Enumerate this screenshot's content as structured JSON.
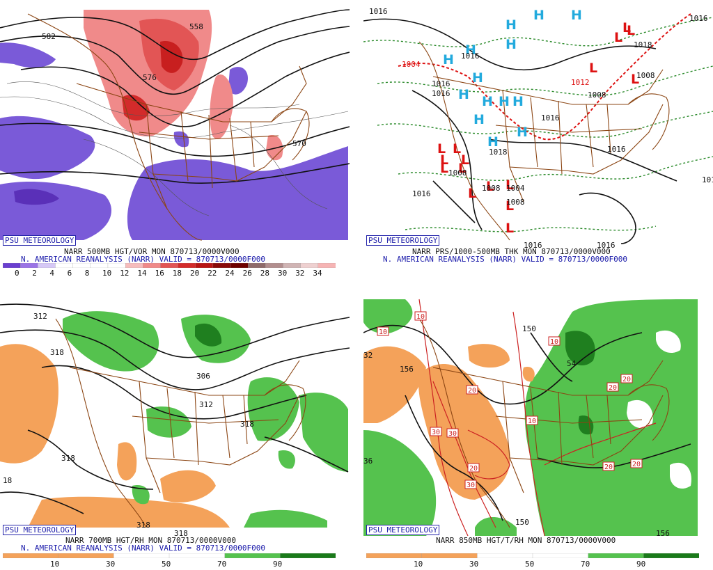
{
  "panels": [
    {
      "id": "p1",
      "tag": "PSU METEOROLOGY",
      "line1": "NARR 500MB HGT/VOR MON 870713/0000V000",
      "line2": "N. AMERICAN REANALYSIS (NARR) VALID = 870713/0000F000",
      "colorbar": {
        "colors": [
          "#6a3fd0",
          "#9a73e6",
          "#d6c8f6",
          "#ffffff",
          "#ffffff",
          "#ffffff",
          "#ffffff",
          "#f6bcbc",
          "#f08a8a",
          "#e25555",
          "#d32b2b",
          "#b81515",
          "#8a0a0a",
          "#6d0000",
          "#8e6a6a",
          "#b28e8e",
          "#d0b4b4",
          "#eed0d0",
          "#f6b4b4"
        ],
        "ticks": [
          "0",
          "2",
          "4",
          "6",
          "8",
          "10",
          "12",
          "14",
          "16",
          "18",
          "20",
          "22",
          "24",
          "26",
          "28",
          "30",
          "32",
          "34"
        ]
      },
      "contour_labels": [
        "582",
        "558",
        "576",
        "570"
      ]
    },
    {
      "id": "p2",
      "tag": "PSU METEOROLOGY",
      "line1": "NARR PRS/1000-500MB THK MON 870713/0000V000",
      "line2": "N. AMERICAN REANALYSIS (NARR) VALID = 870713/0000F000",
      "highs": [
        "H",
        "H",
        "H",
        "H",
        "H",
        "H",
        "H",
        "H",
        "H",
        "H",
        "H",
        "H",
        "H",
        "H"
      ],
      "lows": [
        "L",
        "L",
        "L",
        "L",
        "L",
        "L",
        "L",
        "L",
        "L",
        "L",
        "L",
        "L",
        "L",
        "L",
        "L",
        "L"
      ],
      "contour_labels": [
        "1016",
        "1016",
        "1016",
        "1016",
        "1016",
        "1016",
        "1016",
        "1016",
        "1016",
        "1016",
        "1016",
        "1018",
        "1018",
        "1008",
        "1008",
        "1008",
        "1008",
        "1004",
        "1012",
        "1004",
        "1008"
      ],
      "colors": {
        "high": "#22aadd",
        "low": "#dd1111",
        "thickness": "#228822"
      }
    },
    {
      "id": "p3",
      "tag": "PSU METEOROLOGY",
      "line1": "NARR 700MB HGT/RH MON 870713/0000V000",
      "line2": "N. AMERICAN REANALYSIS (NARR) VALID = 870713/0000F000",
      "colorbar": {
        "colors": [
          "#f4a25a",
          "#f4a25a",
          "#ffffff",
          "#ffffff",
          "#55c24e",
          "#1a7a1a"
        ],
        "ticks": [
          "10",
          "30",
          "50",
          "70",
          "90"
        ]
      },
      "contour_labels": [
        "312",
        "318",
        "306",
        "312",
        "318",
        "318",
        "318",
        "318",
        "18"
      ]
    },
    {
      "id": "p4",
      "tag": "PSU METEOROLOGY",
      "line1": "NARR 850MB HGT/T/RH MON 870713/0000V000",
      "colorbar": {
        "colors": [
          "#f4a25a",
          "#f4a25a",
          "#ffffff",
          "#ffffff",
          "#55c24e",
          "#1a7a1a"
        ],
        "ticks": [
          "10",
          "30",
          "50",
          "70",
          "90"
        ]
      },
      "contour_labels": [
        "150",
        "156",
        "150",
        "156",
        "32",
        "36",
        "54"
      ],
      "temp_labels": [
        "10",
        "10",
        "20",
        "20",
        "20",
        "20",
        "20",
        "20",
        "30",
        "30",
        "30",
        "10",
        "10"
      ]
    }
  ]
}
